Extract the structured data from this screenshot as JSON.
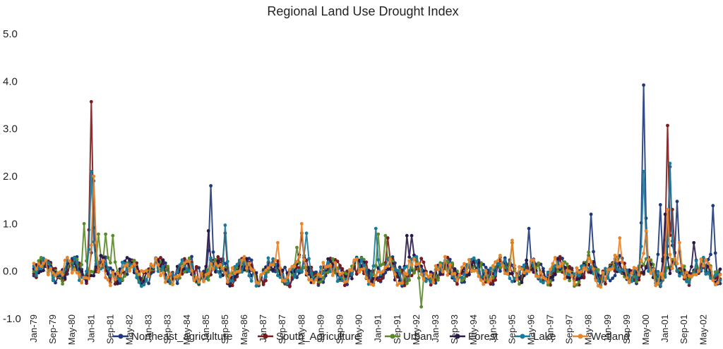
{
  "chart_data": {
    "type": "line",
    "title": "Regional Land Use Drought Index",
    "xlabel": "",
    "ylabel": "",
    "ylim": [
      -1.0,
      5.0
    ],
    "ytick_labels": [
      "5.0",
      "4.0",
      "3.0",
      "2.0",
      "1.0",
      "0.0",
      "-1.0"
    ],
    "ytick_values": [
      5,
      4,
      3,
      2,
      1,
      0,
      -1
    ],
    "grid": false,
    "legend_position": "bottom",
    "x_range": [
      "Jan-79",
      "Dec-02"
    ],
    "month_count": 288,
    "x_tick_labels": [
      "Jan-79",
      "Sep-79",
      "May-80",
      "Jan-81",
      "Sep-81",
      "May-82",
      "Jan-83",
      "Sep-83",
      "May-84",
      "Jan-85",
      "Sep-85",
      "May-86",
      "Jan-87",
      "Sep-87",
      "May-88",
      "Jan-89",
      "Sep-89",
      "May-90",
      "Jan-91",
      "Sep-91",
      "May-92",
      "Jan-93",
      "Sep-93",
      "May-94",
      "Jan-95",
      "Sep-95",
      "May-96",
      "Jan-97",
      "Sep-97",
      "May-98",
      "Jan-99",
      "Sep-99",
      "May-00",
      "Jan-01",
      "Sep-01",
      "May-02"
    ],
    "x_tick_interval_months": 8,
    "baseline_level": 0.0,
    "series": [
      {
        "name": "Northeast_agriculture",
        "color": "#1f3a7a",
        "peaks": [
          [
            25,
            1.9
          ],
          [
            74,
            1.8
          ],
          [
            207,
            0.9
          ],
          [
            233,
            1.2
          ],
          [
            255,
            3.92
          ],
          [
            262,
            1.4
          ],
          [
            266,
            2.2
          ],
          [
            269,
            1.47
          ],
          [
            284,
            1.38
          ]
        ]
      },
      {
        "name": "South_Agriculture",
        "color": "#7a1a1a",
        "peaks": [
          [
            24,
            3.57
          ],
          [
            80,
            0.8
          ],
          [
            148,
            0.7
          ],
          [
            265,
            3.07
          ],
          [
            267,
            1.3
          ]
        ]
      },
      {
        "name": "Urban",
        "color": "#5a8a2a",
        "peaks": [
          [
            21,
            1.0
          ],
          [
            27,
            0.78
          ],
          [
            30,
            0.78
          ],
          [
            33,
            0.75
          ],
          [
            110,
            0.5
          ],
          [
            144,
            0.78
          ],
          [
            147,
            0.75
          ],
          [
            162,
            -0.75
          ],
          [
            200,
            0.6
          ],
          [
            232,
            0.4
          ]
        ]
      },
      {
        "name": "Forest",
        "color": "#2a1a4a",
        "peaks": [
          [
            73,
            0.85
          ],
          [
            112,
            0.8
          ],
          [
            156,
            0.75
          ],
          [
            158,
            0.75
          ],
          [
            264,
            1.2
          ],
          [
            276,
            0.6
          ]
        ]
      },
      {
        "name": "Lake",
        "color": "#1a7a9a",
        "peaks": [
          [
            24,
            2.1
          ],
          [
            80,
            0.97
          ],
          [
            114,
            0.8
          ],
          [
            143,
            0.9
          ],
          [
            255,
            2.1
          ],
          [
            266,
            2.27
          ]
        ]
      },
      {
        "name": "Wetland",
        "color": "#e8842a",
        "peaks": [
          [
            25,
            2.0
          ],
          [
            112,
            1.0
          ],
          [
            102,
            0.6
          ],
          [
            200,
            0.65
          ],
          [
            245,
            0.7
          ],
          [
            256,
            0.85
          ],
          [
            265,
            1.3
          ],
          [
            270,
            0.6
          ]
        ]
      }
    ]
  }
}
